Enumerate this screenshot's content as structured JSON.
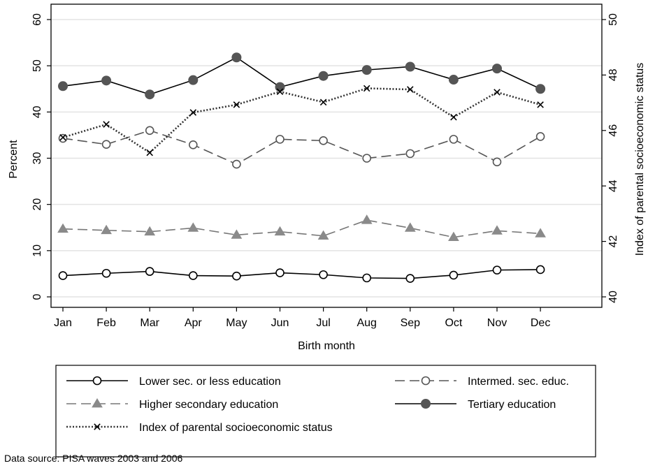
{
  "chart_data": {
    "type": "line",
    "title": "",
    "xlabel": "Birth month",
    "ylabel": "Percent",
    "y2label": "Index of parental socioeconomic status",
    "categories": [
      "Jan",
      "Feb",
      "Mar",
      "Apr",
      "May",
      "Jun",
      "Jul",
      "Aug",
      "Sep",
      "Oct",
      "Nov",
      "Dec"
    ],
    "ylim": [
      0,
      60
    ],
    "yticks": [
      0,
      10,
      20,
      30,
      40,
      50,
      60
    ],
    "y2lim": [
      40,
      50
    ],
    "y2ticks": [
      40,
      42,
      44,
      46,
      48,
      50
    ],
    "grid": true,
    "legend_placement": "bottom",
    "series": [
      {
        "key": "lower",
        "name": "Lower sec. or less education",
        "axis": "left",
        "line": "solid",
        "marker": "hollow-circle",
        "color": "#000000",
        "values": [
          4.6,
          5.1,
          5.5,
          4.6,
          4.5,
          5.2,
          4.8,
          4.1,
          4.0,
          4.7,
          5.8,
          5.9
        ]
      },
      {
        "key": "intermed",
        "name": "Intermed. sec. educ.",
        "axis": "left",
        "line": "dashed",
        "marker": "hollow-circle",
        "color": "#555555",
        "values": [
          34.3,
          33.0,
          36.0,
          32.9,
          28.7,
          34.1,
          33.8,
          30.0,
          31.0,
          34.1,
          29.2,
          34.7
        ]
      },
      {
        "key": "higher",
        "name": "Higher secondary education",
        "axis": "left",
        "line": "dashed",
        "marker": "filled-triangle",
        "color": "#777777",
        "values": [
          14.7,
          14.4,
          14.1,
          14.9,
          13.4,
          14.1,
          13.2,
          16.6,
          14.9,
          12.9,
          14.3,
          13.7
        ]
      },
      {
        "key": "tertiary",
        "name": "Tertiary education",
        "axis": "left",
        "line": "solid",
        "marker": "filled-circle",
        "color": "#000000",
        "values": [
          45.6,
          46.8,
          43.8,
          46.9,
          51.8,
          45.4,
          47.8,
          49.1,
          49.8,
          47.0,
          49.4,
          45.0
        ]
      },
      {
        "key": "index",
        "name": "Index of parental socioeconomic status",
        "axis": "right",
        "line": "dotted",
        "marker": "x",
        "color": "#333333",
        "values": [
          45.75,
          46.22,
          45.2,
          46.65,
          46.93,
          47.4,
          47.02,
          47.52,
          47.48,
          46.48,
          47.38,
          46.93
        ]
      }
    ],
    "note": "Data source: PISA waves 2003 and 2006"
  }
}
